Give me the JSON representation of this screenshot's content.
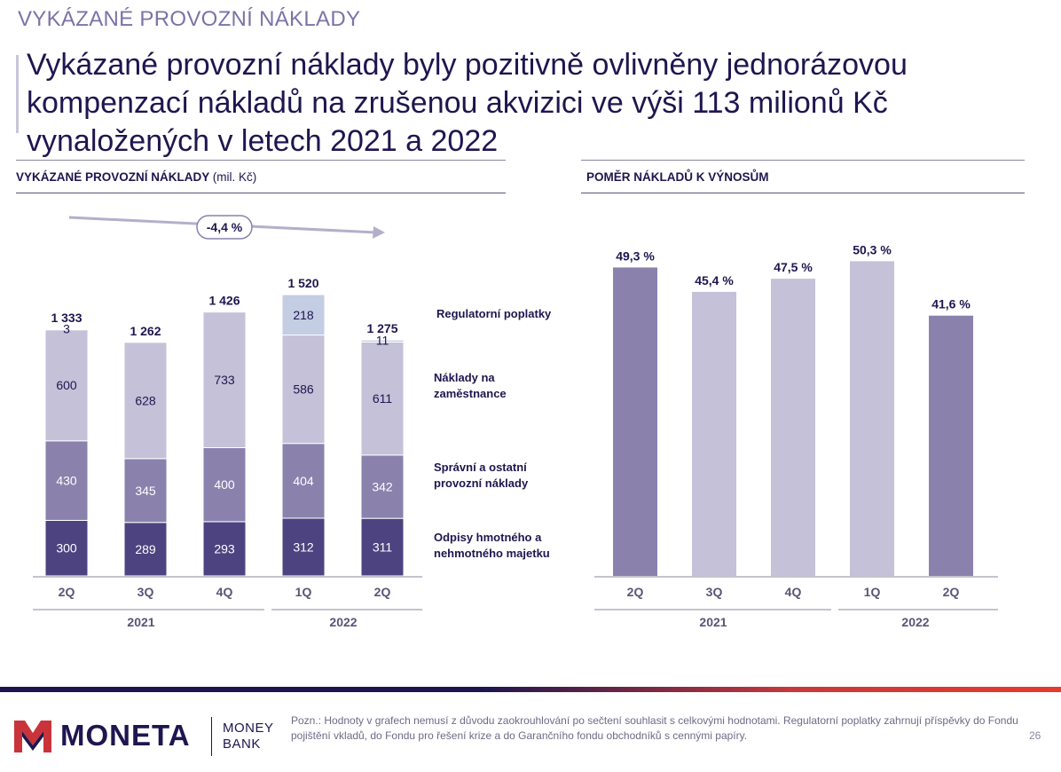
{
  "section_label": "VYKÁZANÉ PROVOZNÍ NÁKLADY",
  "headline": "Vykázané provozní náklady byly pozitivně ovlivněny jednorázovou kompenzací nákladů na zrušenou akvizici ve výši 113 milionů Kč vynaložených v letech 2021 a 2022",
  "left_panel": {
    "title": "VYKÁZANÉ PROVOZNÍ NÁKLADY",
    "unit": "(mil. Kč)"
  },
  "right_panel": {
    "title": "POMĚR NÁKLADŮ K VÝNOSŮM"
  },
  "colors": {
    "dark": "#4d4380",
    "mid": "#8a82ad",
    "light": "#c4c1d8",
    "reg": "#c3cde3",
    "text": "#1e164f"
  },
  "chart_data": [
    {
      "type": "bar",
      "stacked": true,
      "categories": [
        "2Q",
        "3Q",
        "4Q",
        "1Q",
        "2Q"
      ],
      "groups": [
        {
          "label": "2021",
          "categories": [
            0,
            1,
            2
          ]
        },
        {
          "label": "2022",
          "categories": [
            3,
            4
          ]
        }
      ],
      "series": [
        {
          "name": "Odpisy hmotného a nehmotného majetku",
          "values": [
            300,
            289,
            293,
            312,
            311
          ],
          "color": "#4d4380"
        },
        {
          "name": "Správní a ostatní provozní náklady",
          "values": [
            430,
            345,
            400,
            404,
            342
          ],
          "color": "#8a82ad"
        },
        {
          "name": "Náklady na zaměstnance",
          "values": [
            600,
            628,
            733,
            586,
            611
          ],
          "color": "#c4c1d8"
        },
        {
          "name": "Regulatorní poplatky",
          "values": [
            3,
            0,
            0,
            218,
            11
          ],
          "color": "#c3cde3"
        }
      ],
      "totals": [
        "1 333",
        "1 262",
        "1 426",
        "1 520",
        "1 275"
      ],
      "value_labels": [
        [
          "300",
          "289",
          "293",
          "312",
          "311"
        ],
        [
          "430",
          "345",
          "400",
          "404",
          "342"
        ],
        [
          "600",
          "628",
          "733",
          "586",
          "611"
        ],
        [
          "3",
          "",
          "",
          "218",
          "11"
        ]
      ],
      "legend_lines": [
        [
          "Regulatorní poplatky"
        ],
        [
          "Náklady na",
          "zaměstnance"
        ],
        [
          "Správní a ostatní",
          "provozní náklady"
        ],
        [
          "Odpisy hmotného a",
          "nehmotného majetku"
        ]
      ],
      "trend_label": "-4,4 %"
    },
    {
      "type": "bar",
      "categories": [
        "2Q",
        "3Q",
        "4Q",
        "1Q",
        "2Q"
      ],
      "groups": [
        {
          "label": "2021",
          "categories": [
            0,
            1,
            2
          ]
        },
        {
          "label": "2022",
          "categories": [
            3,
            4
          ]
        }
      ],
      "values": [
        49.3,
        45.4,
        47.5,
        50.3,
        41.6
      ],
      "value_labels": [
        "49,3 %",
        "45,4 %",
        "47,5 %",
        "50,3 %",
        "41,6 %"
      ],
      "colors": [
        "#8a82ad",
        "#c4c1d8",
        "#c4c1d8",
        "#c4c1d8",
        "#8a82ad"
      ]
    }
  ],
  "footer": {
    "logo": "MONETA",
    "logo_sub": [
      "MONEY",
      "BANK"
    ],
    "note": "Pozn.: Hodnoty v grafech nemusí z důvodu zaokrouhlování po sečtení souhlasit s celkovými hodnotami. Regulatorní poplatky zahrnují příspěvky do Fondu pojištění vkladů, do Fondu pro řešení krize a do Garančního fondu obchodníků s cennými papíry.",
    "page": "26"
  }
}
